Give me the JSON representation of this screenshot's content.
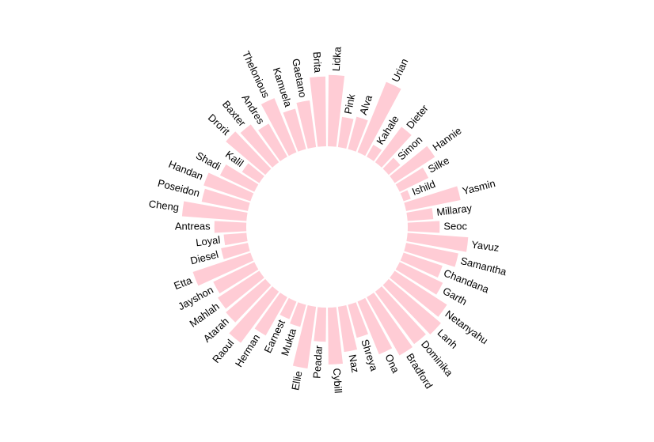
{
  "chart_data": {
    "type": "bar",
    "layout": "circular",
    "bar_color": "#ffccd5",
    "categories": [
      "Lidka",
      "Pink",
      "Alva",
      "Urian",
      "Kahale",
      "Dieter",
      "Simon",
      "Hannie",
      "Silke",
      "Ishild",
      "Yasmin",
      "Millaray",
      "Seoc",
      "Yavuz",
      "Samantha",
      "Chandana",
      "Garth",
      "Netanyahu",
      "Lanh",
      "Dominika",
      "Bradford",
      "Ona",
      "Shreya",
      "Naz",
      "Cybill",
      "Peadar",
      "Ellie",
      "Mukta",
      "Earnest",
      "Herman",
      "Raoul",
      "Atarah",
      "Mahlah",
      "Jayshon",
      "Etta",
      "Diesel",
      "Loyal",
      "Antreas",
      "Cheng",
      "Poseidon",
      "Handan",
      "Shadi",
      "Kalil",
      "Drorit",
      "Baxter",
      "Andres",
      "Thelonious",
      "Kamuela",
      "Gaetano",
      "Brita"
    ],
    "values": [
      94,
      40,
      44,
      100,
      18,
      58,
      20,
      63,
      42,
      10,
      73,
      34,
      42,
      80,
      70,
      54,
      63,
      82,
      90,
      86,
      88,
      75,
      45,
      60,
      75,
      45,
      82,
      30,
      25,
      58,
      84,
      68,
      65,
      60,
      80,
      36,
      30,
      42,
      85,
      62,
      65,
      50,
      27,
      68,
      62,
      50,
      77,
      55,
      62,
      92
    ]
  }
}
